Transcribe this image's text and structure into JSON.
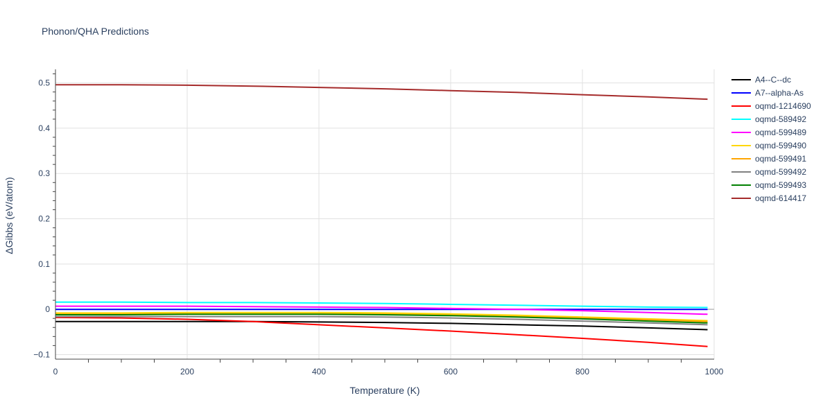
{
  "chart_data": {
    "type": "line",
    "title": "Phonon/QHA Predictions",
    "xlabel": "Temperature (K)",
    "ylabel": "ΔGibbs (eV/atom)",
    "xlim": [
      0,
      1000
    ],
    "ylim": [
      -0.11,
      0.53
    ],
    "xticks": [
      0,
      200,
      400,
      600,
      800,
      1000
    ],
    "yticks": [
      -0.1,
      0,
      0.1,
      0.2,
      0.3,
      0.4,
      0.5
    ],
    "grid": true,
    "legend_position": "top-right",
    "x": [
      0,
      100,
      200,
      300,
      400,
      500,
      600,
      700,
      800,
      900,
      990
    ],
    "series": [
      {
        "name": "A4--C--dc",
        "color": "#000000",
        "values": [
          -0.027,
          -0.027,
          -0.027,
          -0.027,
          -0.028,
          -0.029,
          -0.031,
          -0.034,
          -0.037,
          -0.041,
          -0.045
        ]
      },
      {
        "name": "A7--alpha-As",
        "color": "#0000ff",
        "values": [
          0.0,
          0.0,
          0.0,
          0.0,
          0.0,
          0.0,
          0.0,
          0.0,
          0.0,
          0.0,
          0.0
        ]
      },
      {
        "name": "oqmd-1214690",
        "color": "#ff0000",
        "values": [
          -0.018,
          -0.019,
          -0.022,
          -0.027,
          -0.034,
          -0.041,
          -0.048,
          -0.056,
          -0.064,
          -0.073,
          -0.082
        ]
      },
      {
        "name": "oqmd-589492",
        "color": "#00ffff",
        "values": [
          0.016,
          0.016,
          0.015,
          0.015,
          0.014,
          0.013,
          0.011,
          0.009,
          0.007,
          0.005,
          0.004
        ]
      },
      {
        "name": "oqmd-599489",
        "color": "#ff00ff",
        "values": [
          0.007,
          0.007,
          0.007,
          0.006,
          0.005,
          0.004,
          0.002,
          0.0,
          -0.003,
          -0.007,
          -0.011
        ]
      },
      {
        "name": "oqmd-599490",
        "color": "#ffd700",
        "values": [
          -0.008,
          -0.008,
          -0.007,
          -0.007,
          -0.007,
          -0.008,
          -0.01,
          -0.013,
          -0.017,
          -0.021,
          -0.025
        ]
      },
      {
        "name": "oqmd-599491",
        "color": "#ffa500",
        "values": [
          -0.011,
          -0.011,
          -0.01,
          -0.01,
          -0.01,
          -0.011,
          -0.013,
          -0.016,
          -0.019,
          -0.023,
          -0.027
        ]
      },
      {
        "name": "oqmd-599492",
        "color": "#808080",
        "values": [
          -0.016,
          -0.016,
          -0.016,
          -0.016,
          -0.016,
          -0.017,
          -0.019,
          -0.022,
          -0.026,
          -0.03,
          -0.034
        ]
      },
      {
        "name": "oqmd-599493",
        "color": "#008000",
        "values": [
          -0.012,
          -0.012,
          -0.011,
          -0.011,
          -0.011,
          -0.012,
          -0.014,
          -0.017,
          -0.021,
          -0.026,
          -0.03
        ]
      },
      {
        "name": "oqmd-614417",
        "color": "#a52a2a",
        "values": [
          0.496,
          0.496,
          0.495,
          0.493,
          0.49,
          0.487,
          0.483,
          0.479,
          0.474,
          0.469,
          0.464
        ]
      }
    ]
  }
}
